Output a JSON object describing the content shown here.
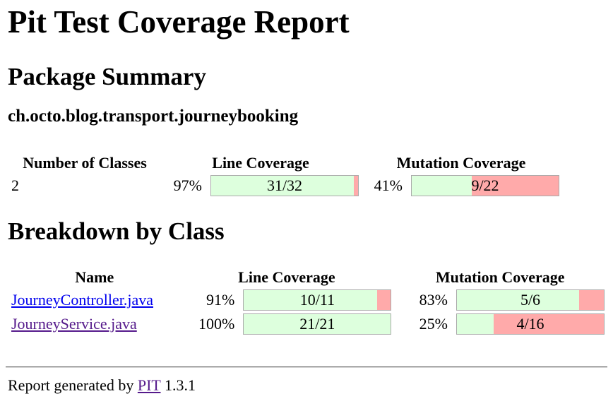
{
  "page": {
    "title": "Pit Test Coverage Report"
  },
  "package_summary": {
    "heading": "Package Summary",
    "package_name": "ch.octo.blog.transport.journeybooking",
    "columns": [
      "Number of Classes",
      "Line Coverage",
      "Mutation Coverage"
    ],
    "row": {
      "number_of_classes": "2",
      "line_coverage": {
        "percent": "97%",
        "label": "31/32",
        "covered_pct": 96.9
      },
      "mutation_coverage": {
        "percent": "41%",
        "label": "9/22",
        "covered_pct": 40.9
      }
    }
  },
  "breakdown": {
    "heading": "Breakdown by Class",
    "columns": [
      "Name",
      "Line Coverage",
      "Mutation Coverage"
    ],
    "rows": [
      {
        "name": "JourneyController.java",
        "line_coverage": {
          "percent": "91%",
          "label": "10/11",
          "covered_pct": 90.9
        },
        "mutation_coverage": {
          "percent": "83%",
          "label": "5/6",
          "covered_pct": 83.3
        }
      },
      {
        "name": "JourneyService.java",
        "line_coverage": {
          "percent": "100%",
          "label": "21/21",
          "covered_pct": 100
        },
        "mutation_coverage": {
          "percent": "25%",
          "label": "4/16",
          "covered_pct": 25
        }
      }
    ]
  },
  "footer": {
    "prefix": "Report generated by",
    "link_label": "PIT",
    "version": "1.3.1"
  },
  "colors": {
    "covered": "#DDFFDD",
    "uncovered": "#FFAAAA",
    "bar_border": "#AAAAAA",
    "link": "#0000EE",
    "link_visited": "#551A8B"
  }
}
